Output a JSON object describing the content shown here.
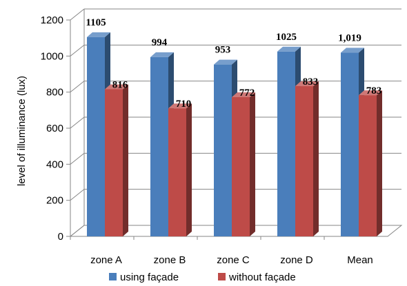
{
  "chart_data": {
    "type": "bar",
    "categories": [
      "zone A",
      "zone B",
      "zone C",
      "zone D",
      "Mean"
    ],
    "series": [
      {
        "name": "using façade",
        "values": [
          1105,
          994,
          953,
          1025,
          1019
        ],
        "labels": [
          "1105",
          "994",
          "953",
          "1025",
          "1,019"
        ],
        "color": "#4A7EBB"
      },
      {
        "name": "without façade",
        "values": [
          816,
          710,
          772,
          833,
          783
        ],
        "labels": [
          "816",
          "710",
          "772",
          "833",
          "783"
        ],
        "color": "#BE4B48"
      }
    ],
    "title": "",
    "xlabel": "",
    "ylabel": "level of illuminance (lux)",
    "ylim": [
      0,
      1200
    ],
    "yticks": [
      "0",
      "200",
      "400",
      "600",
      "800",
      "1000",
      "1200"
    ],
    "grid": true,
    "legend_position": "bottom"
  }
}
